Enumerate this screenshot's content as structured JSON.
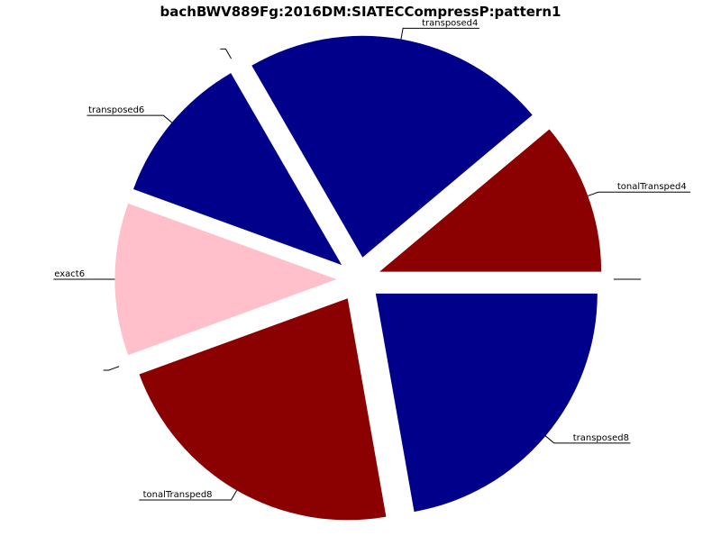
{
  "chart_data": {
    "type": "pie",
    "title": "bachBWV889Fg:2016DM:SIATECCompressP:pattern1",
    "slices": [
      {
        "label": "tonalTransped4",
        "value": 1,
        "color": "#8b0000"
      },
      {
        "label": "transposed4",
        "value": 2,
        "color": "#00008b"
      },
      {
        "label": "transposed6",
        "value": 1,
        "color": "#00008b"
      },
      {
        "label": "exact6",
        "value": 1,
        "color": "#ffc0cb"
      },
      {
        "label": "tonalTransped8",
        "value": 2,
        "color": "#8b0000"
      },
      {
        "label": "transposed8",
        "value": 2,
        "color": "#00008b"
      }
    ],
    "unlabeled_zero_slices": 3,
    "start_angle_deg": 0,
    "direction": "counterclockwise",
    "exploded": true,
    "legend": "none"
  }
}
